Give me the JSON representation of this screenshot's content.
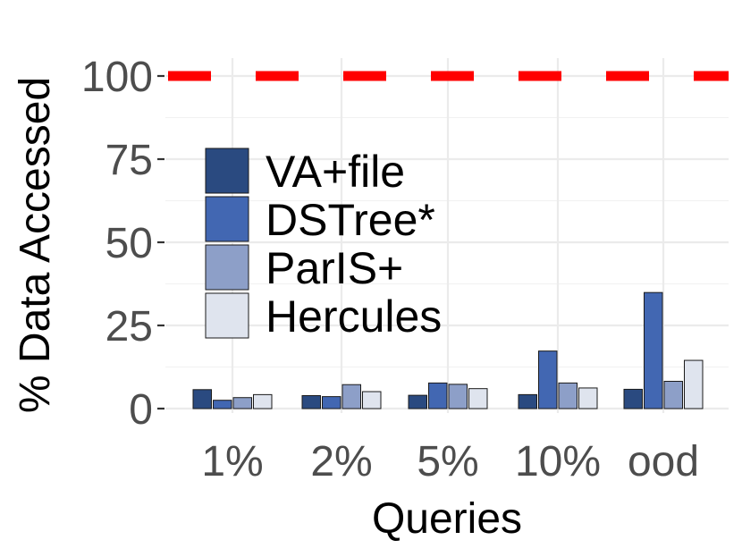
{
  "chart_data": {
    "type": "bar",
    "xlabel": "Queries",
    "ylabel": "% Data Accessed",
    "categories": [
      "1%",
      "2%",
      "5%",
      "10%",
      "ood"
    ],
    "series": [
      {
        "name": "VA+file",
        "color": "#2a4a80",
        "values": [
          5.7,
          3.9,
          4.0,
          4.2,
          5.8
        ]
      },
      {
        "name": "DSTree*",
        "color": "#4267b2",
        "values": [
          2.5,
          3.6,
          7.7,
          17.3,
          34.9
        ]
      },
      {
        "name": "ParIS+",
        "color": "#8d9fc8",
        "values": [
          3.3,
          7.2,
          7.3,
          7.7,
          8.2
        ]
      },
      {
        "name": "Hercules",
        "color": "#dfe4ee",
        "values": [
          4.2,
          5.1,
          6.0,
          6.2,
          14.5
        ]
      }
    ],
    "yticks": [
      0,
      25,
      50,
      75,
      100
    ],
    "ylim": [
      0,
      100
    ],
    "reference_line": {
      "value": 100,
      "color": "#ff0000",
      "style": "dashed"
    },
    "grid": true,
    "legend_position": "top-left"
  }
}
